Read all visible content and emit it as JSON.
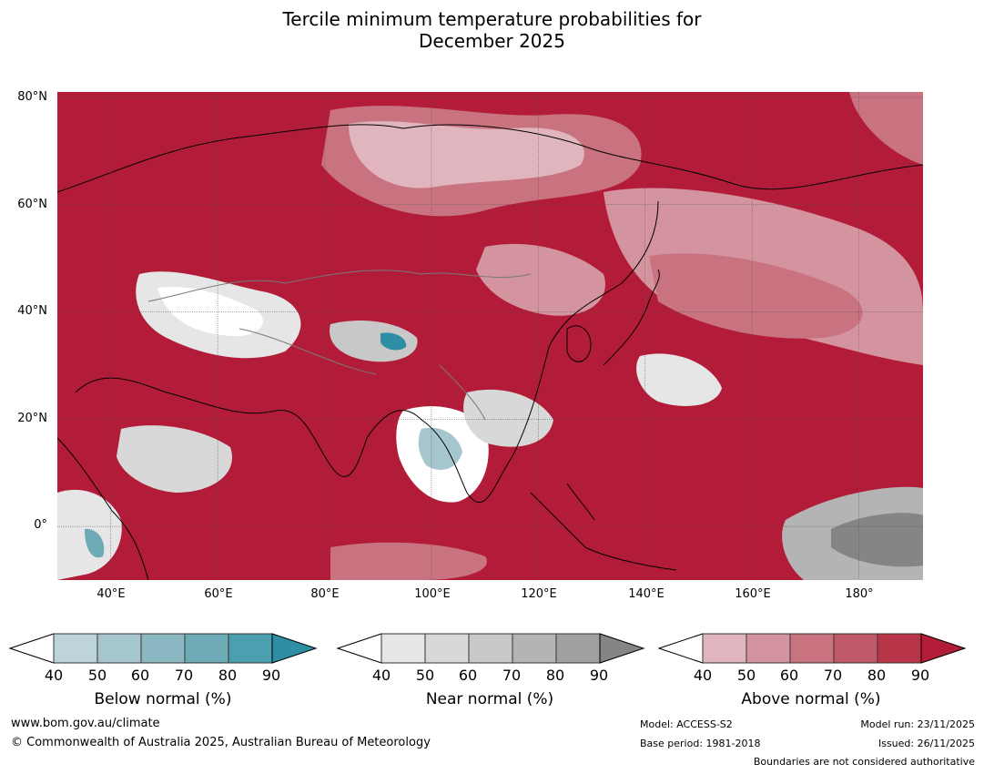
{
  "title_line1": "Tercile minimum temperature probabilities for",
  "title_line2": "December 2025",
  "map": {
    "lat_labels": [
      "80°N",
      "60°N",
      "40°N",
      "20°N",
      "0°"
    ],
    "lon_labels": [
      "40°E",
      "60°E",
      "80°E",
      "100°E",
      "120°E",
      "140°E",
      "160°E",
      "180°"
    ],
    "extent": {
      "lon": [
        30,
        192
      ],
      "lat": [
        -10,
        81
      ]
    }
  },
  "colorbars": [
    {
      "label": "Below normal (%)",
      "ticks": [
        "40",
        "50",
        "60",
        "70",
        "80",
        "90"
      ],
      "colors": [
        "#ffffff",
        "#bed4db",
        "#a5c6cc",
        "#8bb7c2",
        "#6eabb7",
        "#4c9fae",
        "#2e8ea3"
      ]
    },
    {
      "label": "Near normal (%)",
      "ticks": [
        "40",
        "50",
        "60",
        "70",
        "80",
        "90"
      ],
      "colors": [
        "#ffffff",
        "#e6e6e6",
        "#d8d8d8",
        "#c8c8c8",
        "#b4b4b4",
        "#a0a0a0",
        "#858585"
      ]
    },
    {
      "label": "Above normal (%)",
      "ticks": [
        "40",
        "50",
        "60",
        "70",
        "80",
        "90"
      ],
      "colors": [
        "#ffffff",
        "#e0b5bd",
        "#d4949f",
        "#c8737f",
        "#bf5867",
        "#b83447",
        "#b31c38"
      ]
    }
  ],
  "footer": {
    "website": "www.bom.gov.au/climate",
    "copyright": "© Commonwealth of Australia 2025, Australian Bureau of Meteorology",
    "model": "Model: ACCESS-S2",
    "base_period": "Base period: 1981-2018",
    "model_run": "Model run: 23/11/2025",
    "issued": "Issued: 26/11/2025",
    "disclaimer": "Boundaries are not considered authoritative"
  }
}
